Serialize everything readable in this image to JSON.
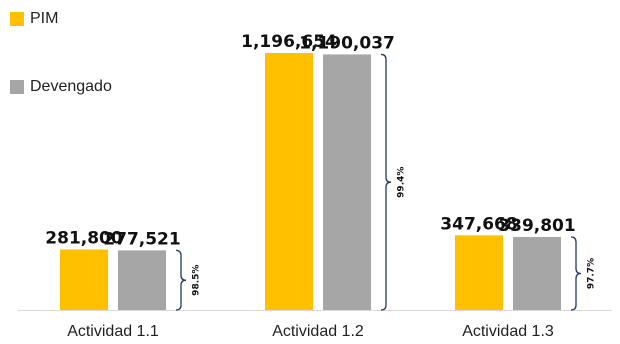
{
  "chart_data": {
    "type": "bar",
    "categories": [
      "Actividad 1.1",
      "Actividad 1.2",
      "Actividad 1.3"
    ],
    "series": [
      {
        "name": "PIM",
        "values": [
          281800,
          1196654,
          347668
        ],
        "labels": [
          "281,800",
          "1,196,654",
          "347,668"
        ]
      },
      {
        "name": "Devengado",
        "values": [
          277521,
          1190037,
          339801
        ],
        "labels": [
          "277,521",
          "1,190,037",
          "339,801"
        ]
      }
    ],
    "annotations": [
      "98.5%",
      "99.4%",
      "97.7%"
    ],
    "ylim": [
      0,
      1196654
    ],
    "grid": false,
    "legend": "top-left",
    "colors": {
      "PIM": "#FFC000",
      "Devengado": "#A6A6A6",
      "axis": "#D9D9D9",
      "bracket": "#1F3864"
    }
  }
}
